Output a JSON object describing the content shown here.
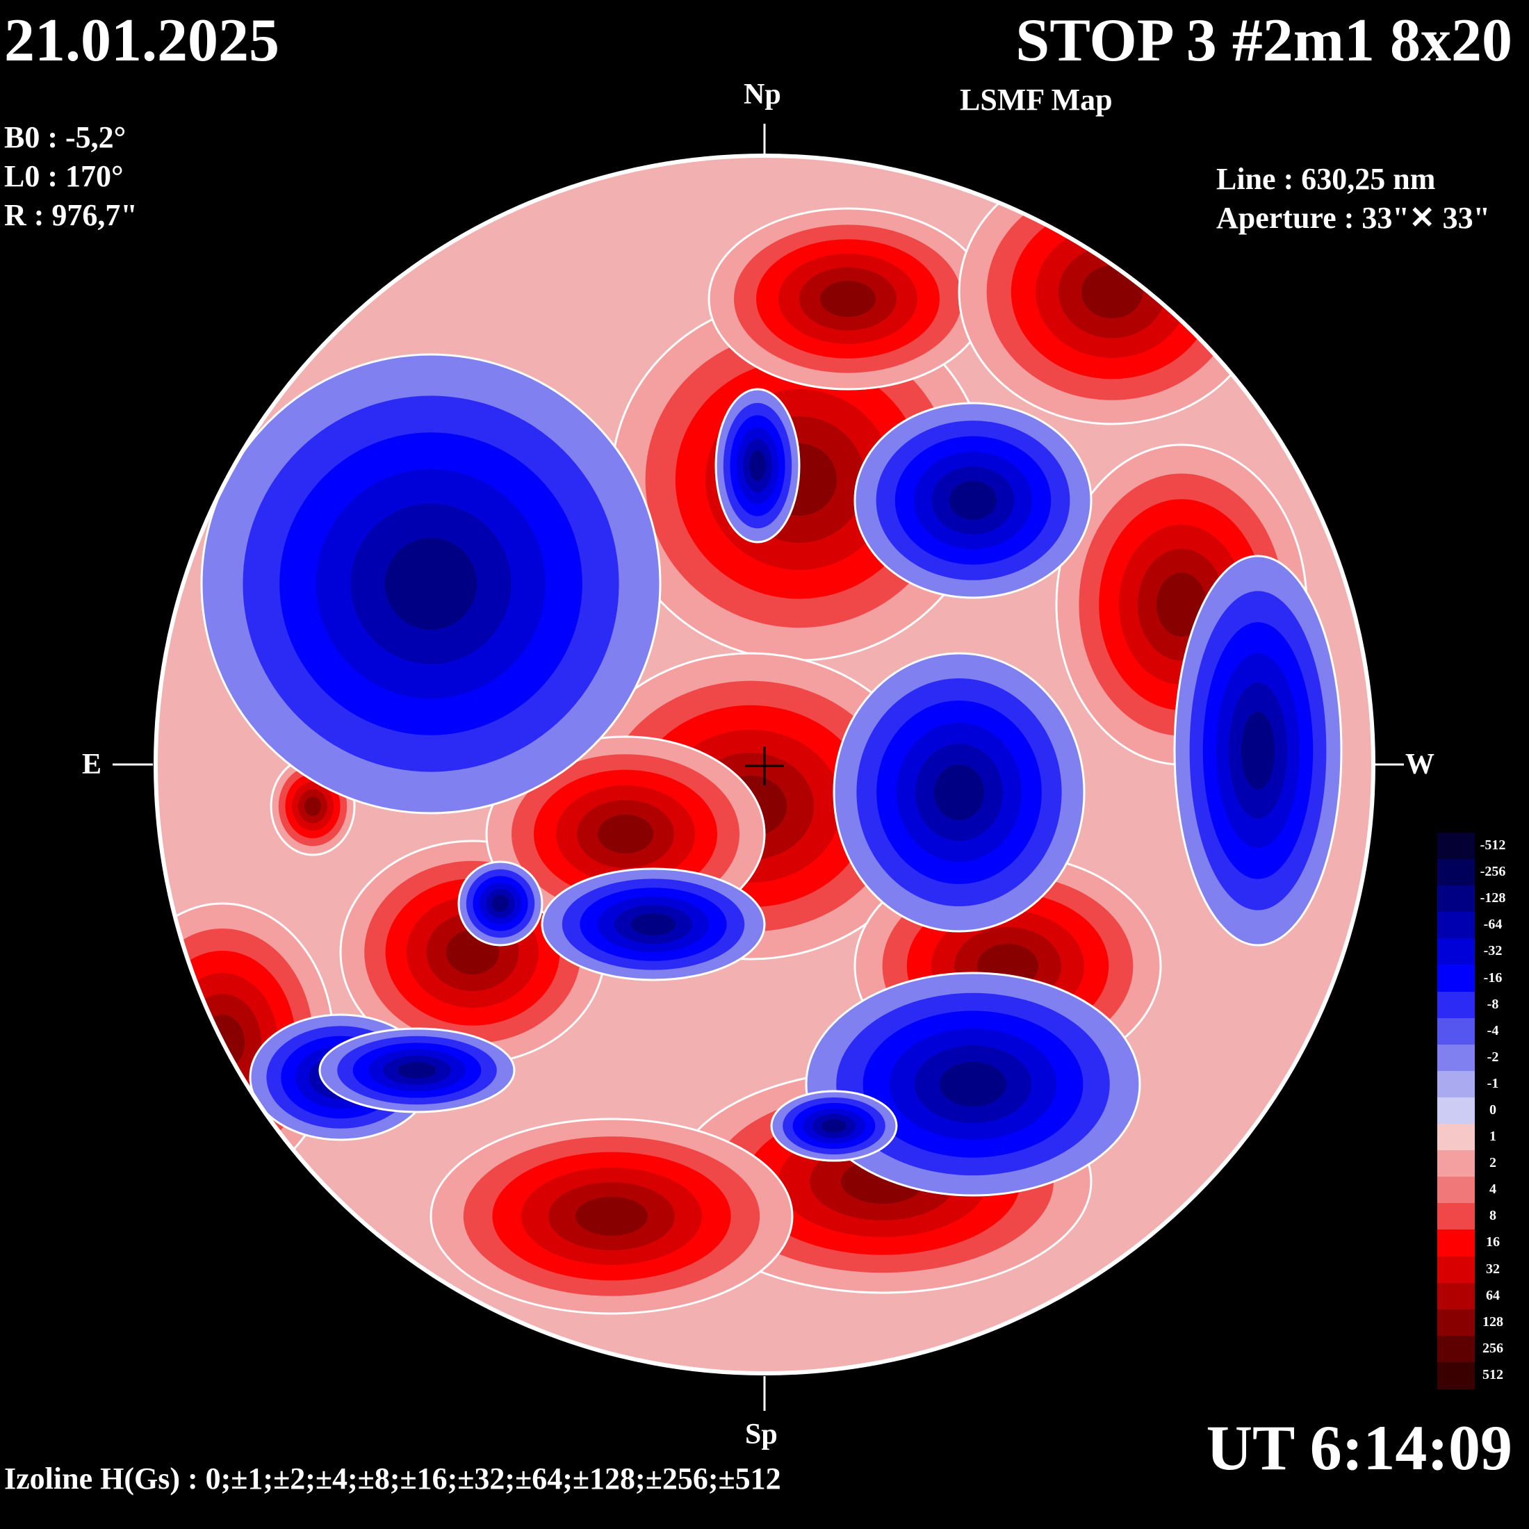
{
  "header": {
    "date": "21.01.2025",
    "title": "STOP 3 #2m1 8x20",
    "subtitle": "LSMF  Map"
  },
  "params": {
    "b0": "B0 : -5,2°",
    "l0": "L0 : 170°",
    "r": "R  : 976,7\""
  },
  "instrument": {
    "line": "Line :  630,25 nm",
    "aperture": "Aperture : 33\"✕ 33\""
  },
  "directions": {
    "north": "Np",
    "south": "Sp",
    "east": "E",
    "west": "W"
  },
  "time": "UT 6:14:09",
  "izoline": "Izoline H(Gs) : 0;±1;±2;±4;±8;±16;±32;±64;±128;±256;±512",
  "legend": {
    "labels": [
      "-512",
      "-256",
      "-128",
      "-64",
      "-32",
      "-16",
      "-8",
      "-4",
      "-2",
      "-1",
      "0",
      "1",
      "2",
      "4",
      "8",
      "16",
      "32",
      "64",
      "128",
      "256",
      "512"
    ],
    "colors": [
      "#050033",
      "#00005a",
      "#000085",
      "#0000b0",
      "#0000d8",
      "#0000ff",
      "#2b2bf5",
      "#5555f0",
      "#8080f0",
      "#aaaaf0",
      "#ccccf5",
      "#f7c8c8",
      "#f5a0a0",
      "#f07878",
      "#f04848",
      "#ff0000",
      "#d80000",
      "#b00000",
      "#880000",
      "#5e0000",
      "#3a0000"
    ]
  },
  "regions": {
    "positive": [
      [
        1150,
        690,
        270,
        260
      ],
      [
        1220,
        430,
        200,
        130
      ],
      [
        1600,
        420,
        220,
        190
      ],
      [
        1700,
        870,
        180,
        230
      ],
      [
        1080,
        1160,
        260,
        220
      ],
      [
        1450,
        1390,
        220,
        160
      ],
      [
        680,
        1370,
        190,
        160
      ],
      [
        900,
        1200,
        200,
        140
      ],
      [
        450,
        1160,
        60,
        70
      ],
      [
        320,
        1500,
        160,
        200
      ],
      [
        1270,
        1700,
        300,
        160
      ],
      [
        880,
        1750,
        260,
        140
      ]
    ],
    "negative": [
      [
        620,
        840,
        330,
        330
      ],
      [
        1090,
        670,
        60,
        110
      ],
      [
        1400,
        720,
        170,
        140
      ],
      [
        1380,
        1140,
        180,
        200
      ],
      [
        940,
        1330,
        160,
        80
      ],
      [
        720,
        1300,
        60,
        60
      ],
      [
        1810,
        1080,
        120,
        280
      ],
      [
        490,
        1550,
        130,
        90
      ],
      [
        1400,
        1560,
        240,
        160
      ],
      [
        600,
        1540,
        140,
        60
      ],
      [
        1200,
        1620,
        90,
        50
      ]
    ]
  }
}
